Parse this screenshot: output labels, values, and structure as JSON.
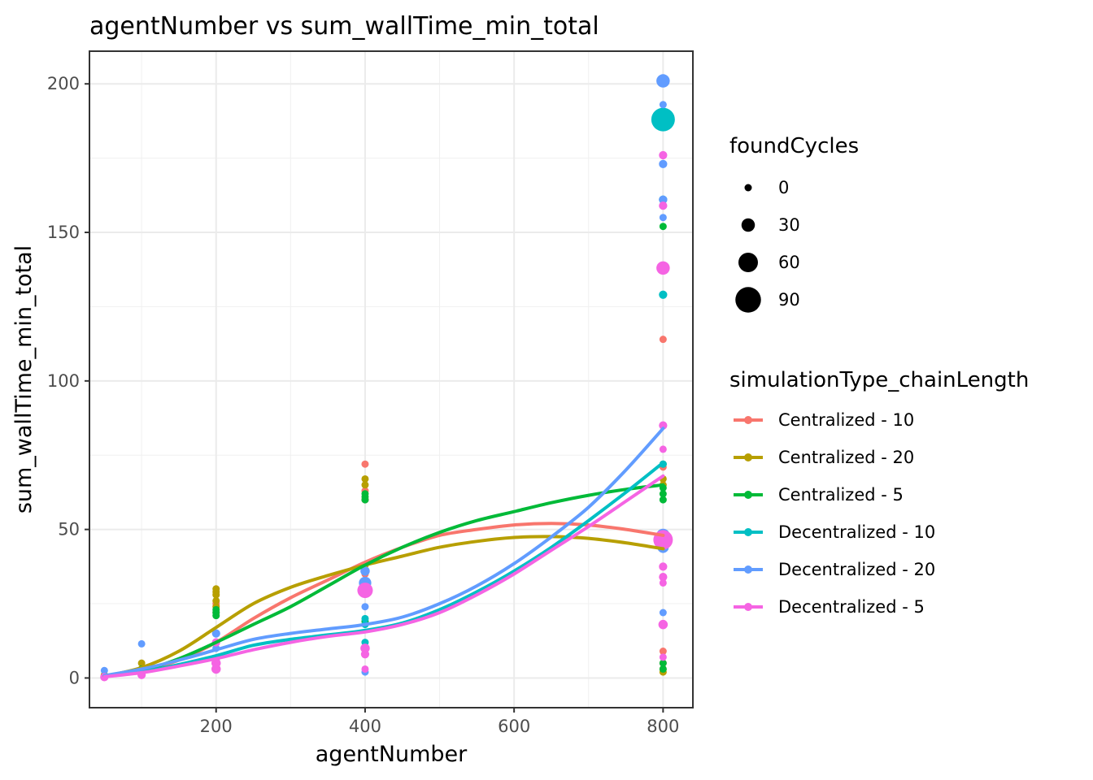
{
  "chart_data": {
    "type": "scatter",
    "title": "agentNumber  vs  sum_wallTime_min_total",
    "xlabel": "agentNumber",
    "ylabel": "sum_wallTime_min_total",
    "xlim": [
      30,
      840
    ],
    "ylim": [
      -10,
      211
    ],
    "x_ticks": [
      "200",
      "400",
      "600",
      "800"
    ],
    "y_ticks": [
      "0",
      "50",
      "100",
      "150",
      "200"
    ],
    "grid": true,
    "size_legend": {
      "title": "foundCycles",
      "entries": [
        {
          "label": "0",
          "value": 0
        },
        {
          "label": "30",
          "value": 30
        },
        {
          "label": "60",
          "value": 60
        },
        {
          "label": "90",
          "value": 90
        }
      ]
    },
    "color_legend": {
      "title": "simulationType_chainLength",
      "placement": "right"
    },
    "series": [
      {
        "name": "Centralized - 10",
        "color": "#F8766D",
        "points": [
          [
            50,
            0.5,
            0
          ],
          [
            100,
            2,
            0
          ],
          [
            200,
            15,
            0
          ],
          [
            200,
            22,
            0
          ],
          [
            200,
            25,
            0
          ],
          [
            400,
            72,
            0
          ],
          [
            400,
            63,
            0
          ],
          [
            400,
            60,
            0
          ],
          [
            400,
            35,
            0
          ],
          [
            800,
            114,
            0
          ],
          [
            800,
            71,
            0
          ],
          [
            800,
            48,
            0
          ],
          [
            800,
            9,
            0
          ],
          [
            800,
            5,
            0
          ]
        ],
        "smooth": [
          [
            50,
            0.6
          ],
          [
            100,
            2.5
          ],
          [
            150,
            6
          ],
          [
            200,
            12
          ],
          [
            250,
            20
          ],
          [
            300,
            27
          ],
          [
            350,
            33
          ],
          [
            400,
            39
          ],
          [
            450,
            44
          ],
          [
            500,
            48
          ],
          [
            550,
            50
          ],
          [
            600,
            51.5
          ],
          [
            650,
            52
          ],
          [
            700,
            51.5
          ],
          [
            750,
            50
          ],
          [
            800,
            48
          ]
        ]
      },
      {
        "name": "Centralized - 20",
        "color": "#B79F00",
        "points": [
          [
            50,
            1,
            0
          ],
          [
            100,
            5,
            0
          ],
          [
            100,
            3,
            0
          ],
          [
            200,
            30,
            0
          ],
          [
            200,
            29,
            0
          ],
          [
            200,
            28,
            0
          ],
          [
            200,
            26,
            0
          ],
          [
            200,
            24,
            0
          ],
          [
            400,
            67,
            0
          ],
          [
            400,
            65,
            0
          ],
          [
            400,
            38,
            0
          ],
          [
            800,
            67,
            0
          ],
          [
            800,
            65,
            0
          ],
          [
            800,
            3,
            0
          ],
          [
            800,
            2,
            0
          ]
        ],
        "smooth": [
          [
            50,
            0.6
          ],
          [
            100,
            3.5
          ],
          [
            150,
            9
          ],
          [
            200,
            17
          ],
          [
            250,
            25
          ],
          [
            300,
            30.5
          ],
          [
            350,
            34.5
          ],
          [
            400,
            38
          ],
          [
            450,
            41
          ],
          [
            500,
            44
          ],
          [
            550,
            46
          ],
          [
            600,
            47.3
          ],
          [
            650,
            47.6
          ],
          [
            700,
            47
          ],
          [
            750,
            45.5
          ],
          [
            800,
            43.5
          ]
        ]
      },
      {
        "name": "Centralized - 5",
        "color": "#00BA38",
        "points": [
          [
            50,
            0.3,
            0
          ],
          [
            100,
            3,
            0
          ],
          [
            200,
            23,
            0
          ],
          [
            200,
            22,
            0
          ],
          [
            200,
            21,
            0
          ],
          [
            400,
            62,
            0
          ],
          [
            400,
            61,
            0
          ],
          [
            400,
            60,
            0
          ],
          [
            400,
            19,
            0
          ],
          [
            800,
            152,
            0
          ],
          [
            800,
            72,
            0
          ],
          [
            800,
            64,
            0
          ],
          [
            800,
            62,
            0
          ],
          [
            800,
            60,
            0
          ],
          [
            800,
            5,
            0
          ],
          [
            800,
            3,
            0
          ]
        ],
        "smooth": [
          [
            50,
            0.6
          ],
          [
            100,
            2.5
          ],
          [
            150,
            6.5
          ],
          [
            200,
            12
          ],
          [
            250,
            18
          ],
          [
            300,
            24
          ],
          [
            350,
            31
          ],
          [
            400,
            38
          ],
          [
            450,
            44
          ],
          [
            500,
            49
          ],
          [
            550,
            53
          ],
          [
            600,
            56
          ],
          [
            650,
            59
          ],
          [
            700,
            61.5
          ],
          [
            750,
            63.5
          ],
          [
            800,
            65
          ]
        ]
      },
      {
        "name": "Decentralized - 10",
        "color": "#00BFC4",
        "points": [
          [
            50,
            0.4,
            0
          ],
          [
            100,
            2,
            0
          ],
          [
            200,
            10,
            0
          ],
          [
            200,
            6,
            0
          ],
          [
            400,
            20,
            0
          ],
          [
            400,
            18,
            0
          ],
          [
            400,
            12,
            0
          ],
          [
            400,
            30,
            15
          ],
          [
            800,
            188,
            80
          ],
          [
            800,
            161,
            5
          ],
          [
            800,
            129,
            5
          ],
          [
            800,
            72,
            0
          ],
          [
            800,
            46,
            25
          ]
        ],
        "smooth": [
          [
            50,
            0.5
          ],
          [
            100,
            2
          ],
          [
            150,
            4.5
          ],
          [
            200,
            7.5
          ],
          [
            250,
            11
          ],
          [
            300,
            13
          ],
          [
            350,
            14.5
          ],
          [
            400,
            16
          ],
          [
            450,
            18.5
          ],
          [
            500,
            23
          ],
          [
            550,
            29
          ],
          [
            600,
            36
          ],
          [
            650,
            44
          ],
          [
            700,
            53
          ],
          [
            750,
            62.5
          ],
          [
            800,
            72.5
          ]
        ]
      },
      {
        "name": "Decentralized - 20",
        "color": "#619CFF",
        "points": [
          [
            50,
            2.5,
            0
          ],
          [
            100,
            11.5,
            0
          ],
          [
            200,
            15,
            5
          ],
          [
            200,
            10,
            0
          ],
          [
            400,
            36,
            10
          ],
          [
            400,
            32,
            25
          ],
          [
            400,
            24,
            0
          ],
          [
            400,
            2,
            0
          ],
          [
            800,
            201,
            30
          ],
          [
            800,
            193,
            0
          ],
          [
            800,
            173,
            5
          ],
          [
            800,
            161,
            5
          ],
          [
            800,
            155,
            0
          ],
          [
            800,
            48,
            30
          ],
          [
            800,
            44,
            20
          ],
          [
            800,
            22,
            0
          ]
        ],
        "smooth": [
          [
            50,
            0.8
          ],
          [
            100,
            3
          ],
          [
            150,
            6
          ],
          [
            200,
            9.5
          ],
          [
            250,
            13
          ],
          [
            300,
            15
          ],
          [
            350,
            16.5
          ],
          [
            400,
            18
          ],
          [
            450,
            20.5
          ],
          [
            500,
            25
          ],
          [
            550,
            31
          ],
          [
            600,
            38.5
          ],
          [
            650,
            47.5
          ],
          [
            700,
            57.5
          ],
          [
            750,
            70
          ],
          [
            800,
            84
          ]
        ]
      },
      {
        "name": "Decentralized - 5",
        "color": "#F564E3",
        "points": [
          [
            50,
            0.3,
            5
          ],
          [
            100,
            1,
            5
          ],
          [
            200,
            12,
            5
          ],
          [
            200,
            5,
            10
          ],
          [
            200,
            3,
            10
          ],
          [
            400,
            29.5,
            40
          ],
          [
            400,
            10,
            10
          ],
          [
            400,
            8,
            5
          ],
          [
            400,
            3,
            0
          ],
          [
            800,
            176,
            5
          ],
          [
            800,
            159,
            5
          ],
          [
            800,
            138,
            30
          ],
          [
            800,
            85,
            5
          ],
          [
            800,
            77,
            0
          ],
          [
            800,
            46.5,
            60
          ],
          [
            800,
            37.5,
            5
          ],
          [
            800,
            34,
            5
          ],
          [
            800,
            32,
            0
          ],
          [
            800,
            18,
            10
          ],
          [
            800,
            7,
            0
          ]
        ],
        "smooth": [
          [
            50,
            0.4
          ],
          [
            100,
            1.8
          ],
          [
            150,
            4
          ],
          [
            200,
            6.5
          ],
          [
            250,
            9.5
          ],
          [
            300,
            12
          ],
          [
            350,
            14
          ],
          [
            400,
            15.5
          ],
          [
            450,
            18
          ],
          [
            500,
            22
          ],
          [
            550,
            28
          ],
          [
            600,
            35
          ],
          [
            650,
            43
          ],
          [
            700,
            51
          ],
          [
            750,
            59.5
          ],
          [
            800,
            68
          ]
        ]
      }
    ]
  }
}
